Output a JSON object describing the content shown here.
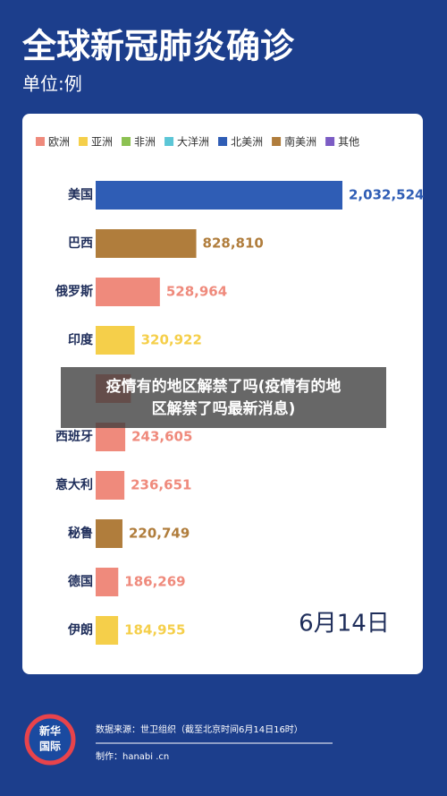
{
  "header": {
    "title": "全球新冠肺炎确诊",
    "unit": "单位:例"
  },
  "chart_data": {
    "type": "bar",
    "orientation": "horizontal",
    "legend": [
      {
        "name": "欧洲",
        "color": "#ef8a7c"
      },
      {
        "name": "亚洲",
        "color": "#f5cf4a"
      },
      {
        "name": "非洲",
        "color": "#8cc152"
      },
      {
        "name": "大洋洲",
        "color": "#5cc6d6"
      },
      {
        "name": "北美洲",
        "color": "#2f5db5"
      },
      {
        "name": "南美洲",
        "color": "#b07d3c"
      },
      {
        "name": "其他",
        "color": "#7c5cc4"
      }
    ],
    "categories": [
      "美国",
      "巴西",
      "俄罗斯",
      "印度",
      null,
      "西班牙",
      "意大利",
      "秘鲁",
      "德国",
      "伊朗"
    ],
    "values": [
      2032524,
      828810,
      528964,
      320922,
      290000,
      243605,
      236651,
      220749,
      186269,
      184955
    ],
    "value_labels": [
      "2,032,524",
      "828,810",
      "528,964",
      "320,922",
      null,
      "243,605",
      "236,651",
      "220,749",
      "186,269",
      "184,955"
    ],
    "colors": [
      "#2f5db5",
      "#b07d3c",
      "#ef8a7c",
      "#f5cf4a",
      "#ef8a7c",
      "#ef8a7c",
      "#ef8a7c",
      "#b07d3c",
      "#ef8a7c",
      "#f5cf4a"
    ]
  },
  "date": "6月14日",
  "overlay": [
    "疫情有的地区解禁了吗(疫情有的地",
    "区解禁了吗最新消息)"
  ],
  "logo": [
    "新华",
    "国际"
  ],
  "footer": {
    "source": "数据来源：世卫组织（截至北京时间6月14日16时）",
    "credit": "制作：hanabi .cn"
  }
}
